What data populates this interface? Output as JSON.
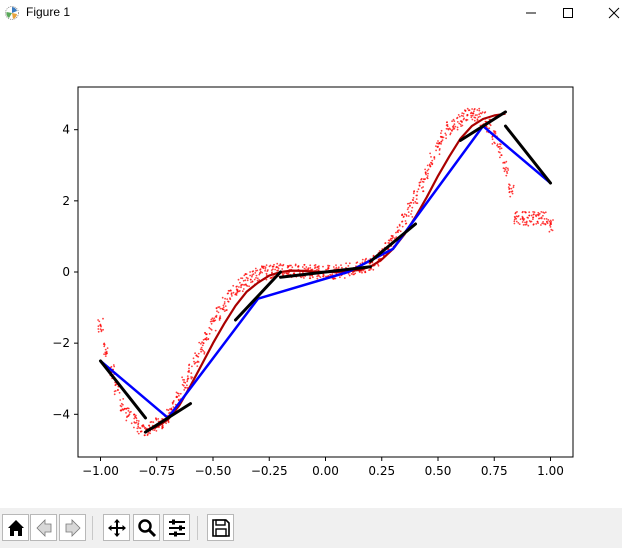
{
  "window": {
    "title": "Figure 1",
    "icons": {
      "app": "matplotlib-icon",
      "minimize": "minimize-icon",
      "maximize": "maximize-icon",
      "close": "close-icon"
    }
  },
  "toolbar": {
    "buttons": [
      {
        "name": "home-button",
        "icon": "home-icon"
      },
      {
        "name": "back-button",
        "icon": "back-arrow-icon"
      },
      {
        "name": "forward-button",
        "icon": "forward-arrow-icon"
      },
      {
        "name": "pan-button",
        "icon": "move-icon"
      },
      {
        "name": "zoom-button",
        "icon": "zoom-icon"
      },
      {
        "name": "configure-subplots-button",
        "icon": "sliders-icon"
      },
      {
        "name": "save-button",
        "icon": "save-icon"
      }
    ]
  },
  "chart_data": {
    "type": "line",
    "title": "",
    "xlabel": "",
    "ylabel": "",
    "xlim": [
      -1.1,
      1.1
    ],
    "ylim": [
      -5.2,
      5.2
    ],
    "grid": false,
    "x_ticks": [
      -1.0,
      -0.75,
      -0.5,
      -0.25,
      0.0,
      0.25,
      0.5,
      0.75,
      1.0
    ],
    "x_tick_labels": [
      "−1.00",
      "−0.75",
      "−0.50",
      "−0.25",
      "0.00",
      "0.25",
      "0.50",
      "0.75",
      "1.00"
    ],
    "y_ticks": [
      -4,
      -2,
      0,
      2,
      4
    ],
    "y_tick_labels": [
      "−4",
      "−2",
      "0",
      "2",
      "4"
    ],
    "colors": {
      "noisy": "#ff0000",
      "smooth": "#aa0000",
      "piecewise": "#0000ff",
      "tangents": "#000000"
    },
    "series": [
      {
        "kind": "scatter",
        "color": "#ff0000",
        "x": [
          -1.0,
          -0.975,
          -0.95,
          -0.925,
          -0.9,
          -0.875,
          -0.85,
          -0.825,
          -0.8,
          -0.775,
          -0.75,
          -0.725,
          -0.7,
          -0.675,
          -0.65,
          -0.625,
          -0.6,
          -0.575,
          -0.55,
          -0.525,
          -0.5,
          -0.475,
          -0.45,
          -0.425,
          -0.4,
          -0.375,
          -0.35,
          -0.325,
          -0.3,
          -0.275,
          -0.25,
          -0.225,
          -0.2,
          -0.175,
          -0.15,
          -0.125,
          -0.1,
          -0.075,
          -0.05,
          -0.025,
          0.0,
          0.025,
          0.05,
          0.075,
          0.1,
          0.125,
          0.15,
          0.175,
          0.2,
          0.225,
          0.25,
          0.275,
          0.3,
          0.325,
          0.35,
          0.375,
          0.4,
          0.425,
          0.45,
          0.475,
          0.5,
          0.525,
          0.55,
          0.575,
          0.6,
          0.625,
          0.65,
          0.675,
          0.7,
          0.725,
          0.75,
          0.775,
          0.8,
          0.825,
          0.85,
          0.875,
          0.9,
          0.925,
          0.95,
          0.975,
          1.0
        ],
        "y": [
          -1.5,
          -2.2,
          -2.8,
          -3.3,
          -3.7,
          -4.0,
          -4.2,
          -4.35,
          -4.4,
          -4.4,
          -4.3,
          -4.2,
          -4.05,
          -3.8,
          -3.5,
          -3.15,
          -2.8,
          -2.45,
          -2.1,
          -1.75,
          -1.45,
          -1.15,
          -0.9,
          -0.7,
          -0.5,
          -0.35,
          -0.25,
          -0.15,
          -0.07,
          -0.02,
          0.02,
          0.05,
          0.06,
          0.06,
          0.05,
          0.04,
          0.03,
          0.02,
          0.01,
          0.0,
          0.0,
          0.0,
          0.01,
          0.03,
          0.05,
          0.08,
          0.12,
          0.18,
          0.25,
          0.35,
          0.5,
          0.7,
          0.9,
          1.15,
          1.45,
          1.75,
          2.1,
          2.45,
          2.8,
          3.15,
          3.5,
          3.8,
          4.05,
          4.2,
          4.3,
          4.4,
          4.45,
          4.4,
          4.3,
          4.1,
          3.8,
          3.4,
          2.9,
          2.3,
          1.5,
          1.5,
          1.5,
          1.5,
          1.5,
          1.5,
          1.3
        ]
      },
      {
        "kind": "line",
        "color": "#aa0000",
        "x": [
          -0.8,
          -0.75,
          -0.7,
          -0.65,
          -0.6,
          -0.55,
          -0.5,
          -0.45,
          -0.4,
          -0.35,
          -0.3,
          -0.25,
          -0.2,
          -0.15,
          -0.1,
          -0.05,
          0.0,
          0.05,
          0.1,
          0.15,
          0.2,
          0.25,
          0.3,
          0.35,
          0.4,
          0.45,
          0.5,
          0.55,
          0.6,
          0.65,
          0.7,
          0.75,
          0.8
        ],
        "y": [
          -4.45,
          -4.35,
          -4.15,
          -3.75,
          -3.2,
          -2.6,
          -2.0,
          -1.45,
          -0.95,
          -0.55,
          -0.3,
          -0.1,
          0.0,
          0.04,
          0.03,
          0.01,
          0.0,
          0.0,
          0.02,
          0.06,
          0.15,
          0.35,
          0.65,
          1.05,
          1.55,
          2.1,
          2.7,
          3.25,
          3.75,
          4.1,
          4.3,
          4.4,
          4.45
        ]
      },
      {
        "kind": "line",
        "color": "#0000ff",
        "x": [
          -1.0,
          -0.7,
          -0.3,
          0.1,
          0.3,
          0.7,
          1.0
        ],
        "y": [
          -2.5,
          -4.1,
          -0.75,
          0.0,
          0.65,
          4.1,
          2.5
        ]
      }
    ],
    "tangent_segments": [
      {
        "x": [
          -1.0,
          -0.8
        ],
        "y": [
          -2.5,
          -4.1
        ]
      },
      {
        "x": [
          -0.8,
          -0.6
        ],
        "y": [
          -4.5,
          -3.7
        ]
      },
      {
        "x": [
          -0.4,
          -0.2
        ],
        "y": [
          -1.35,
          0.0
        ]
      },
      {
        "x": [
          -0.2,
          0.0
        ],
        "y": [
          -0.15,
          0.0
        ]
      },
      {
        "x": [
          0.0,
          0.2
        ],
        "y": [
          0.0,
          0.15
        ]
      },
      {
        "x": [
          0.2,
          0.4
        ],
        "y": [
          0.3,
          1.35
        ]
      },
      {
        "x": [
          0.6,
          0.8
        ],
        "y": [
          3.7,
          4.5
        ]
      },
      {
        "x": [
          0.8,
          1.0
        ],
        "y": [
          4.1,
          2.5
        ]
      }
    ]
  }
}
